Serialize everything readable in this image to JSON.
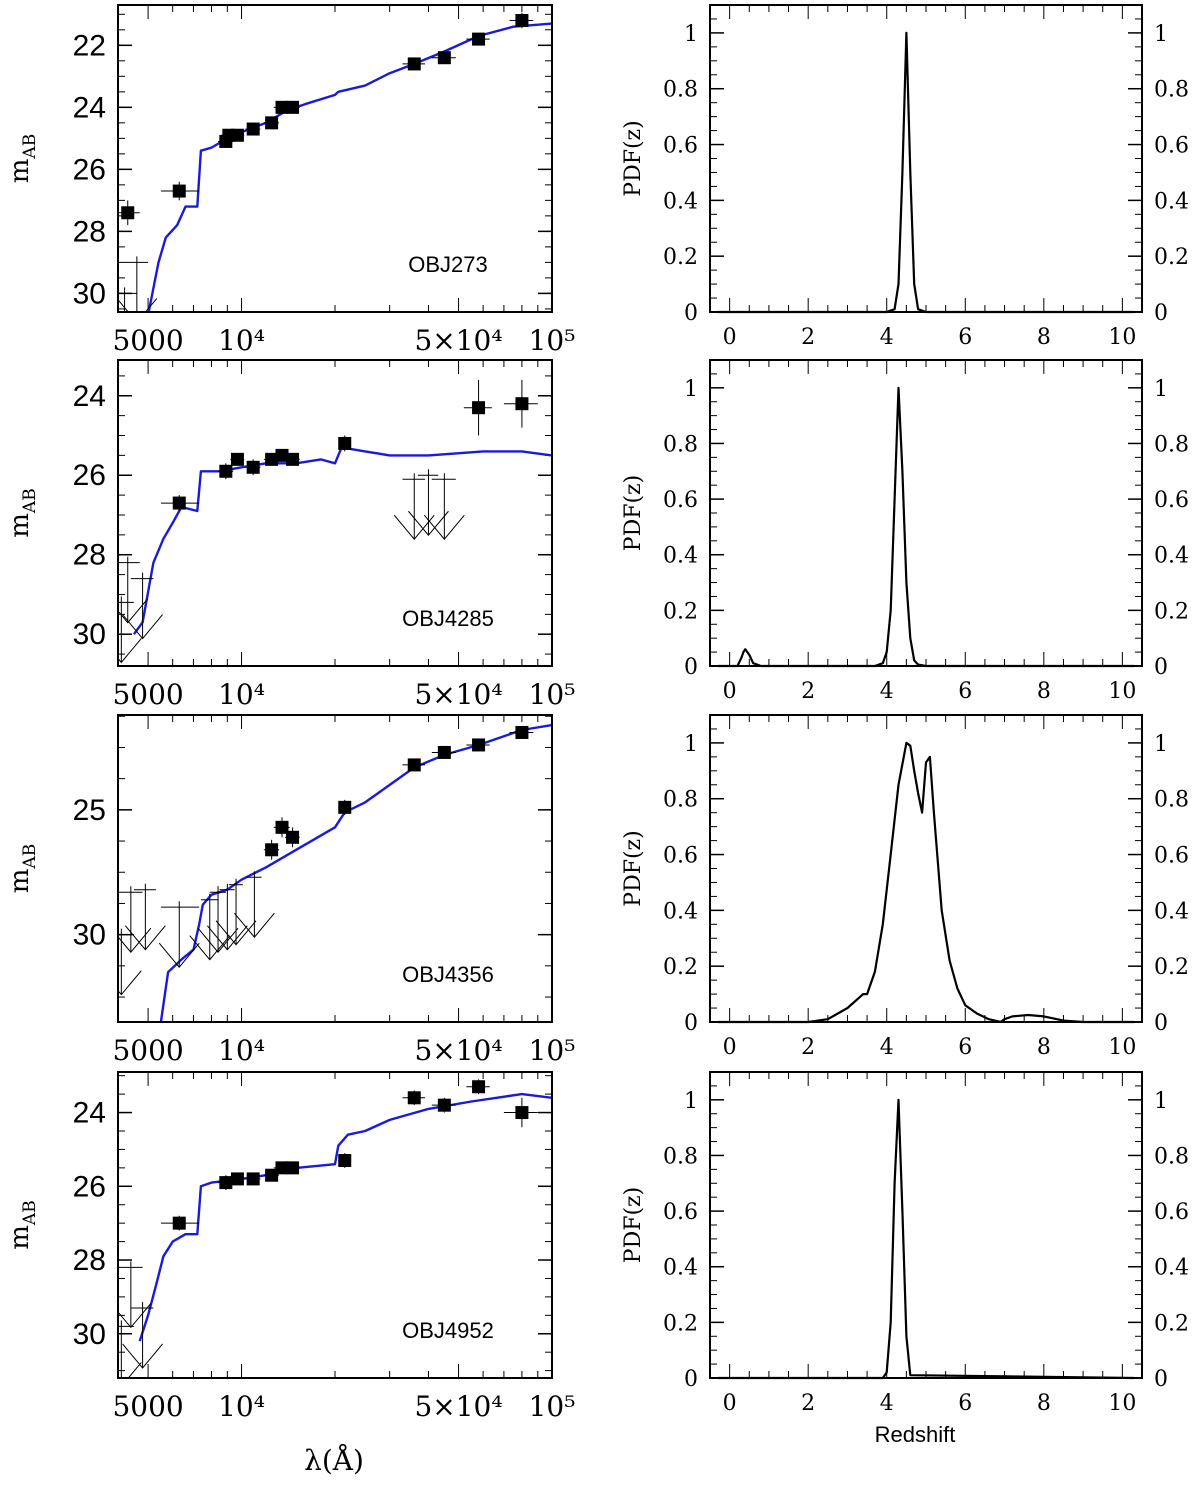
{
  "sed_x_axis": {
    "label": "λ(Å)",
    "scale": "log",
    "xlim": [
      4000,
      100000
    ],
    "ticks": [
      {
        "value": 5000,
        "label": "5000"
      },
      {
        "value": 10000,
        "label": "10⁴"
      },
      {
        "value": 50000,
        "label": "5×10⁴"
      },
      {
        "value": 100000,
        "label": "10⁵"
      }
    ]
  },
  "sed_y_axis_label": "m",
  "sed_y_axis_label_sub": "AB",
  "pdf_x_axis": {
    "label": "Redshift",
    "xlim": [
      -0.5,
      10.5
    ],
    "ticks": [
      {
        "value": 0,
        "label": "0"
      },
      {
        "value": 2,
        "label": "2"
      },
      {
        "value": 4,
        "label": "4"
      },
      {
        "value": 6,
        "label": "6"
      },
      {
        "value": 8,
        "label": "8"
      },
      {
        "value": 10,
        "label": "10"
      }
    ]
  },
  "pdf_y_axis": {
    "label": "PDF(z)",
    "ylim": [
      0,
      1.1
    ],
    "ticks": [
      {
        "value": 0,
        "label": "0"
      },
      {
        "value": 0.2,
        "label": "0.2"
      },
      {
        "value": 0.4,
        "label": "0.4"
      },
      {
        "value": 0.6,
        "label": "0.6"
      },
      {
        "value": 0.8,
        "label": "0.8"
      },
      {
        "value": 1,
        "label": "1"
      }
    ]
  },
  "colors": {
    "template": "#1a1adb",
    "points": "#000000",
    "axes": "#000000"
  },
  "chart_data": [
    {
      "type": "scatter",
      "panel": "sed",
      "object": "OBJ273",
      "ylim": [
        30.6,
        20.7
      ],
      "y_ticks": [
        {
          "value": 22,
          "label": "22"
        },
        {
          "value": 24,
          "label": "24"
        },
        {
          "value": 26,
          "label": "26"
        },
        {
          "value": 28,
          "label": "28"
        },
        {
          "value": 30,
          "label": "30"
        }
      ],
      "points": [
        [
          4300,
          27.4,
          3900,
          4700,
          0.4
        ],
        [
          6300,
          26.7,
          5500,
          7300,
          0.3
        ],
        [
          8900,
          25.1,
          8400,
          9400,
          0.2
        ],
        [
          9100,
          24.9,
          8600,
          9600,
          0.2
        ],
        [
          9700,
          24.9,
          9200,
          10200,
          0.2
        ],
        [
          10900,
          24.7,
          10300,
          11500,
          0.15
        ],
        [
          12500,
          24.5,
          11800,
          13200,
          0.15
        ],
        [
          13500,
          24.0,
          12700,
          14300,
          0.15
        ],
        [
          14600,
          24.0,
          13800,
          15400,
          0.15
        ],
        [
          36000,
          22.6,
          33000,
          39000,
          0.15
        ],
        [
          45000,
          22.4,
          41000,
          49000,
          0.15
        ],
        [
          58000,
          21.8,
          53000,
          63000,
          0.2
        ],
        [
          80000,
          21.2,
          73000,
          87000,
          0.25
        ]
      ],
      "upper_limits": [
        [
          4200,
          30.0,
          3800,
          4600
        ],
        [
          4600,
          29.0,
          4200,
          5000
        ]
      ],
      "template": [
        [
          4700,
          33.0
        ],
        [
          5000,
          30.7
        ],
        [
          5400,
          29.0
        ],
        [
          5700,
          28.2
        ],
        [
          6200,
          27.8
        ],
        [
          6600,
          27.2
        ],
        [
          7200,
          27.2
        ],
        [
          7400,
          25.4
        ],
        [
          8000,
          25.3
        ],
        [
          9000,
          25.0
        ],
        [
          10000,
          24.8
        ],
        [
          12000,
          24.5
        ],
        [
          14000,
          24.1
        ],
        [
          16000,
          23.9
        ],
        [
          20000,
          23.6
        ],
        [
          20500,
          23.5
        ],
        [
          25000,
          23.3
        ],
        [
          30000,
          22.9
        ],
        [
          36000,
          22.6
        ],
        [
          45000,
          22.2
        ],
        [
          58000,
          21.7
        ],
        [
          75000,
          21.4
        ],
        [
          100000,
          21.3
        ]
      ]
    },
    {
      "type": "scatter",
      "panel": "sed",
      "object": "OBJ4285",
      "ylim": [
        30.8,
        23.1
      ],
      "y_ticks": [
        {
          "value": 24,
          "label": "24"
        },
        {
          "value": 26,
          "label": "26"
        },
        {
          "value": 28,
          "label": "28"
        },
        {
          "value": 30,
          "label": "30"
        }
      ],
      "points": [
        [
          6300,
          26.7,
          5500,
          7300,
          0.2
        ],
        [
          8900,
          25.9,
          8400,
          9400,
          0.2
        ],
        [
          9700,
          25.6,
          9200,
          10200,
          0.15
        ],
        [
          10900,
          25.8,
          10300,
          11500,
          0.2
        ],
        [
          12500,
          25.6,
          11800,
          13200,
          0.15
        ],
        [
          13500,
          25.5,
          12700,
          14300,
          0.15
        ],
        [
          14600,
          25.6,
          13800,
          15400,
          0.15
        ],
        [
          21500,
          25.2,
          20500,
          22500,
          0.2
        ],
        [
          58000,
          24.3,
          52000,
          64000,
          0.7
        ],
        [
          80000,
          24.2,
          70000,
          90000,
          0.6
        ]
      ],
      "upper_limits": [
        [
          4100,
          29.2,
          3700,
          4500
        ],
        [
          4300,
          28.2,
          3900,
          4700
        ],
        [
          4800,
          28.6,
          4400,
          5200
        ],
        [
          36000,
          26.1,
          33000,
          39000
        ],
        [
          40000,
          26.0,
          37000,
          43000
        ],
        [
          45000,
          26.1,
          41000,
          49000
        ]
      ],
      "template": [
        [
          4500,
          30.0
        ],
        [
          4800,
          29.7
        ],
        [
          5200,
          28.2
        ],
        [
          5600,
          27.6
        ],
        [
          6000,
          27.2
        ],
        [
          6400,
          26.8
        ],
        [
          7200,
          26.9
        ],
        [
          7400,
          25.9
        ],
        [
          8500,
          25.9
        ],
        [
          10000,
          25.8
        ],
        [
          12000,
          25.7
        ],
        [
          15000,
          25.7
        ],
        [
          18000,
          25.6
        ],
        [
          20000,
          25.7
        ],
        [
          21000,
          25.3
        ],
        [
          25000,
          25.4
        ],
        [
          30000,
          25.5
        ],
        [
          40000,
          25.5
        ],
        [
          60000,
          25.4
        ],
        [
          80000,
          25.4
        ],
        [
          100000,
          25.5
        ]
      ]
    },
    {
      "type": "scatter",
      "panel": "sed",
      "object": "OBJ4356",
      "ylim": [
        33.5,
        21.2
      ],
      "y_ticks": [
        {
          "value": 25,
          "label": "25"
        },
        {
          "value": 30,
          "label": "30"
        }
      ],
      "points": [
        [
          12500,
          26.6,
          11800,
          13200,
          0.4
        ],
        [
          13500,
          25.7,
          12700,
          14300,
          0.4
        ],
        [
          14600,
          26.1,
          13800,
          15400,
          0.4
        ],
        [
          21500,
          24.9,
          20500,
          22500,
          0.3
        ],
        [
          36000,
          23.2,
          33000,
          39000,
          0.2
        ],
        [
          45000,
          22.7,
          41000,
          49000,
          0.2
        ],
        [
          58000,
          22.4,
          53000,
          63000,
          0.2
        ],
        [
          80000,
          21.9,
          73000,
          87000,
          0.25
        ]
      ],
      "upper_limits": [
        [
          4100,
          30.0,
          3700,
          4500
        ],
        [
          4400,
          28.3,
          4000,
          4800
        ],
        [
          4900,
          28.2,
          4500,
          5300
        ],
        [
          6300,
          28.9,
          5500,
          7300
        ],
        [
          7900,
          28.6,
          7400,
          8400
        ],
        [
          8400,
          28.3,
          7900,
          8900
        ],
        [
          9000,
          28.2,
          8500,
          9500
        ],
        [
          9600,
          28.0,
          9100,
          10100
        ],
        [
          11000,
          27.7,
          10400,
          11600
        ]
      ],
      "template": [
        [
          5500,
          33.5
        ],
        [
          5800,
          31.5
        ],
        [
          6400,
          31.0
        ],
        [
          7000,
          30.6
        ],
        [
          7300,
          29.6
        ],
        [
          7500,
          28.8
        ],
        [
          8000,
          28.4
        ],
        [
          9000,
          28.2
        ],
        [
          10000,
          27.8
        ],
        [
          12000,
          27.3
        ],
        [
          15000,
          26.6
        ],
        [
          20000,
          25.7
        ],
        [
          21500,
          25.1
        ],
        [
          25000,
          24.7
        ],
        [
          30000,
          24.0
        ],
        [
          36000,
          23.3
        ],
        [
          45000,
          22.8
        ],
        [
          58000,
          22.4
        ],
        [
          80000,
          21.8
        ],
        [
          100000,
          21.6
        ]
      ]
    },
    {
      "type": "scatter",
      "panel": "sed",
      "object": "OBJ4952",
      "ylim": [
        31.2,
        22.9
      ],
      "y_ticks": [
        {
          "value": 24,
          "label": "24"
        },
        {
          "value": 26,
          "label": "26"
        },
        {
          "value": 28,
          "label": "28"
        },
        {
          "value": 30,
          "label": "30"
        }
      ],
      "points": [
        [
          6300,
          27.0,
          5500,
          7300,
          0.2
        ],
        [
          8900,
          25.9,
          8400,
          9400,
          0.2
        ],
        [
          9700,
          25.8,
          9200,
          10200,
          0.15
        ],
        [
          10900,
          25.8,
          10300,
          11500,
          0.15
        ],
        [
          12500,
          25.7,
          11800,
          13200,
          0.15
        ],
        [
          13500,
          25.5,
          12700,
          14300,
          0.15
        ],
        [
          14600,
          25.5,
          13800,
          15400,
          0.15
        ],
        [
          21500,
          25.3,
          20500,
          22500,
          0.2
        ],
        [
          36000,
          23.6,
          33000,
          39000,
          0.2
        ],
        [
          45000,
          23.8,
          41000,
          49000,
          0.2
        ],
        [
          58000,
          23.3,
          53000,
          63000,
          0.2
        ],
        [
          80000,
          24.0,
          70000,
          90000,
          0.4
        ]
      ],
      "upper_limits": [
        [
          4100,
          29.8,
          3700,
          4500
        ],
        [
          4400,
          28.2,
          4000,
          4800
        ],
        [
          4800,
          29.3,
          4400,
          5200
        ]
      ],
      "template": [
        [
          4700,
          30.2
        ],
        [
          5000,
          29.5
        ],
        [
          5300,
          28.7
        ],
        [
          5600,
          27.9
        ],
        [
          6000,
          27.5
        ],
        [
          6600,
          27.3
        ],
        [
          7200,
          27.3
        ],
        [
          7400,
          26.0
        ],
        [
          8000,
          25.9
        ],
        [
          10000,
          25.8
        ],
        [
          12000,
          25.7
        ],
        [
          15000,
          25.5
        ],
        [
          20000,
          25.4
        ],
        [
          20500,
          24.9
        ],
        [
          22000,
          24.6
        ],
        [
          25000,
          24.5
        ],
        [
          30000,
          24.2
        ],
        [
          40000,
          23.9
        ],
        [
          55000,
          23.7
        ],
        [
          80000,
          23.5
        ],
        [
          100000,
          23.6
        ]
      ]
    },
    {
      "type": "line",
      "panel": "pdf",
      "object": "OBJ273",
      "x": [
        -0.3,
        4.0,
        4.2,
        4.3,
        4.4,
        4.5,
        4.6,
        4.7,
        4.8,
        5.0,
        10.3
      ],
      "y": [
        0,
        0,
        0.01,
        0.1,
        0.5,
        1.0,
        0.5,
        0.1,
        0.01,
        0,
        0
      ]
    },
    {
      "type": "line",
      "panel": "pdf",
      "object": "OBJ4285",
      "x": [
        -0.3,
        0.2,
        0.3,
        0.35,
        0.4,
        0.5,
        0.6,
        0.8,
        3.7,
        3.9,
        4.0,
        4.1,
        4.2,
        4.3,
        4.4,
        4.5,
        4.6,
        4.7,
        4.8,
        5.0,
        10.3
      ],
      "y": [
        0,
        0,
        0.03,
        0.05,
        0.06,
        0.04,
        0.01,
        0,
        0,
        0.01,
        0.05,
        0.2,
        0.6,
        1.0,
        0.7,
        0.3,
        0.1,
        0.02,
        0.005,
        0,
        0
      ]
    },
    {
      "type": "line",
      "panel": "pdf",
      "object": "OBJ4356",
      "x": [
        -0.3,
        2.0,
        2.5,
        3.0,
        3.4,
        3.5,
        3.7,
        3.9,
        4.1,
        4.3,
        4.5,
        4.6,
        4.7,
        4.8,
        4.9,
        5.0,
        5.1,
        5.2,
        5.4,
        5.6,
        5.8,
        6.0,
        6.3,
        6.6,
        6.9,
        7.0,
        7.2,
        7.6,
        8.0,
        8.5,
        9.0,
        10.3
      ],
      "y": [
        0,
        0,
        0.01,
        0.05,
        0.1,
        0.1,
        0.18,
        0.35,
        0.6,
        0.85,
        1.0,
        0.99,
        0.9,
        0.82,
        0.75,
        0.93,
        0.95,
        0.75,
        0.4,
        0.22,
        0.12,
        0.06,
        0.03,
        0.01,
        0.0,
        0.01,
        0.02,
        0.025,
        0.02,
        0.005,
        0,
        0
      ]
    },
    {
      "type": "line",
      "panel": "pdf",
      "object": "OBJ4952",
      "x": [
        -0.3,
        3.9,
        4.0,
        4.1,
        4.2,
        4.3,
        4.4,
        4.5,
        4.6,
        10.3
      ],
      "y": [
        0,
        0,
        0.02,
        0.2,
        0.7,
        1.0,
        0.6,
        0.15,
        0.01,
        0
      ]
    }
  ]
}
